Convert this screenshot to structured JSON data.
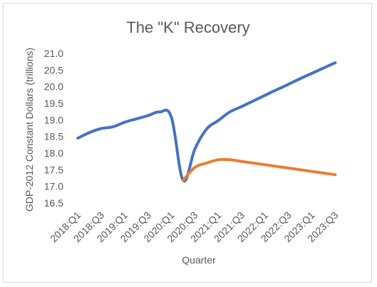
{
  "chart_data": {
    "type": "line",
    "title": "The \"K\" Recovery",
    "xlabel": "Quarter",
    "ylabel": "GDP-2012 Constant Dollars (trillions)",
    "ylim": [
      16.5,
      21.0
    ],
    "yticks": [
      "16.5",
      "17.0",
      "17.5",
      "18.0",
      "18.5",
      "19.0",
      "19.5",
      "20.0",
      "20.5",
      "21.0"
    ],
    "grid": false,
    "x": [
      "2018:Q1",
      "2018:Q2",
      "2018:Q3",
      "2018:Q4",
      "2019:Q1",
      "2019:Q2",
      "2019:Q3",
      "2019:Q4",
      "2020:Q1",
      "2020:Q2",
      "2020:Q3",
      "2020:Q4",
      "2021:Q1",
      "2021:Q2",
      "2021:Q3",
      "2021:Q4",
      "2022:Q1",
      "2022:Q2",
      "2022:Q3",
      "2022:Q4",
      "2023:Q1",
      "2023:Q2",
      "2023:Q3",
      "2023:Q4"
    ],
    "xtick_labels": [
      "2018:Q1",
      "2018:Q3",
      "2019:Q1",
      "2019:Q3",
      "2020:Q1",
      "2020:Q3",
      "2021:Q1",
      "2021:Q3",
      "2022:Q1",
      "2022:Q3",
      "2023:Q1",
      "2023:Q3"
    ],
    "series": [
      {
        "color": "#4472c4",
        "values": [
          18.45,
          18.62,
          18.74,
          18.79,
          18.93,
          19.03,
          19.13,
          19.24,
          19.08,
          17.18,
          18.12,
          18.72,
          18.98,
          19.24,
          19.4,
          19.57,
          19.74,
          19.91,
          20.07,
          20.24,
          20.4,
          20.56,
          20.72,
          null
        ],
        "start_index": 0
      },
      {
        "color": "#ed7d31",
        "values": [
          null,
          null,
          null,
          null,
          null,
          null,
          null,
          null,
          null,
          17.18,
          17.57,
          17.7,
          17.8,
          17.8,
          17.75,
          17.7,
          17.65,
          17.6,
          17.55,
          17.5,
          17.45,
          17.4,
          17.35,
          null
        ]
      }
    ]
  }
}
